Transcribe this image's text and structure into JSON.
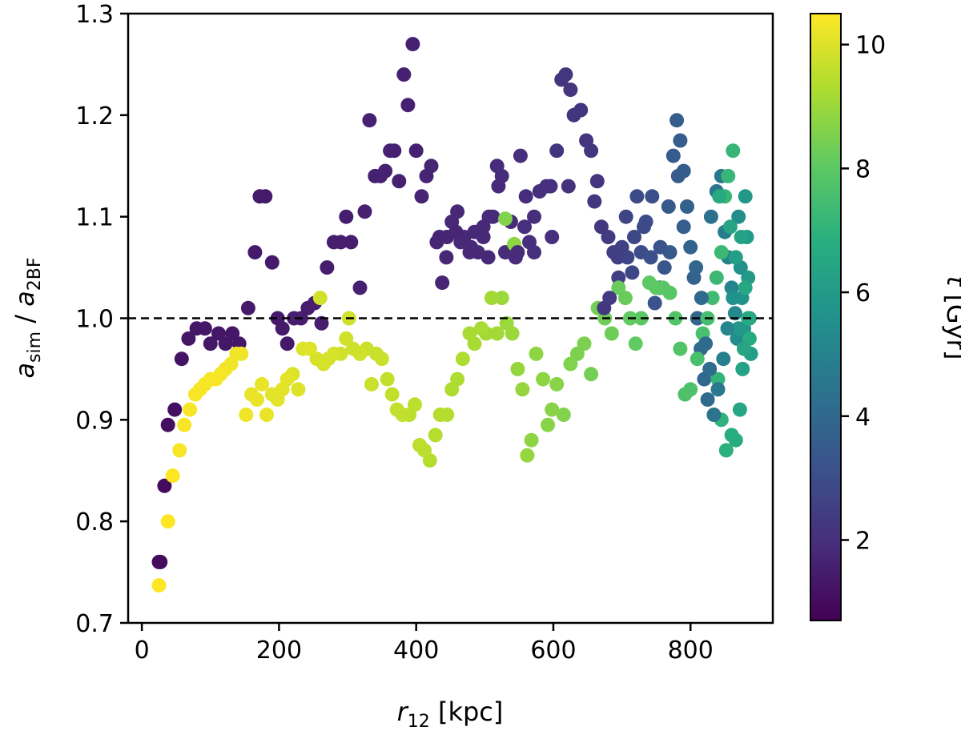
{
  "chart_data": {
    "type": "scatter",
    "title": "",
    "xlabel": {
      "main": "r",
      "sub": "12",
      "unit": "[kpc]"
    },
    "ylabel": {
      "num": "a",
      "num_sub": "sim",
      "sep": " / ",
      "den": "a",
      "den_sub": "2BF"
    },
    "colorbar_label": {
      "main": "t",
      "unit": "[Gyr]"
    },
    "xlim": [
      -20,
      920
    ],
    "ylim": [
      0.7,
      1.3
    ],
    "clim": [
      0.7,
      10.5
    ],
    "xticks": [
      "0",
      "200",
      "400",
      "600",
      "800"
    ],
    "yticks": [
      "0.7",
      "0.8",
      "0.9",
      "1.0",
      "1.1",
      "1.2",
      "1.3"
    ],
    "cticks": [
      "2",
      "4",
      "6",
      "8",
      "10"
    ],
    "colormap": "viridis",
    "reference_line": {
      "y": 1.0,
      "style": "dashed",
      "color": "#000000"
    },
    "points": [
      [
        25,
        0.76,
        1.0
      ],
      [
        27,
        0.76,
        1.0
      ],
      [
        33,
        0.835,
        1.0
      ],
      [
        38,
        0.895,
        1.1
      ],
      [
        48,
        0.91,
        1.1
      ],
      [
        58,
        0.96,
        1.2
      ],
      [
        68,
        0.98,
        1.3
      ],
      [
        80,
        0.99,
        1.3
      ],
      [
        92,
        0.99,
        1.3
      ],
      [
        100,
        0.975,
        1.3
      ],
      [
        112,
        0.985,
        1.3
      ],
      [
        122,
        0.975,
        1.3
      ],
      [
        132,
        0.985,
        1.3
      ],
      [
        142,
        0.975,
        1.3
      ],
      [
        155,
        1.01,
        1.4
      ],
      [
        165,
        1.065,
        1.4
      ],
      [
        172,
        1.12,
        1.4
      ],
      [
        180,
        1.12,
        1.4
      ],
      [
        190,
        1.055,
        1.4
      ],
      [
        198,
        1.0,
        1.4
      ],
      [
        205,
        0.99,
        1.4
      ],
      [
        212,
        0.975,
        1.4
      ],
      [
        222,
        1.0,
        1.5
      ],
      [
        232,
        1.0,
        1.5
      ],
      [
        242,
        1.01,
        1.5
      ],
      [
        252,
        1.015,
        1.5
      ],
      [
        262,
        0.995,
        1.5
      ],
      [
        270,
        1.05,
        1.5
      ],
      [
        280,
        1.075,
        1.5
      ],
      [
        290,
        1.075,
        1.5
      ],
      [
        298,
        1.1,
        1.5
      ],
      [
        305,
        1.075,
        1.5
      ],
      [
        318,
        1.03,
        1.6
      ],
      [
        325,
        1.105,
        1.6
      ],
      [
        332,
        1.195,
        1.6
      ],
      [
        340,
        1.14,
        1.6
      ],
      [
        348,
        1.14,
        1.6
      ],
      [
        355,
        1.145,
        1.6
      ],
      [
        362,
        1.165,
        1.6
      ],
      [
        368,
        1.165,
        1.6
      ],
      [
        375,
        1.135,
        1.6
      ],
      [
        382,
        1.24,
        1.6
      ],
      [
        388,
        1.21,
        1.6
      ],
      [
        395,
        1.27,
        1.6
      ],
      [
        400,
        1.165,
        1.6
      ],
      [
        408,
        1.12,
        1.7
      ],
      [
        415,
        1.14,
        1.7
      ],
      [
        422,
        1.15,
        1.7
      ],
      [
        430,
        1.075,
        1.7
      ],
      [
        438,
        1.035,
        1.7
      ],
      [
        445,
        1.08,
        1.7
      ],
      [
        452,
        1.095,
        1.8
      ],
      [
        460,
        1.105,
        1.8
      ],
      [
        465,
        1.075,
        1.8
      ],
      [
        470,
        1.08,
        1.8
      ],
      [
        478,
        1.065,
        1.8
      ],
      [
        485,
        1.085,
        1.8
      ],
      [
        490,
        1.065,
        1.8
      ],
      [
        498,
        1.08,
        1.8
      ],
      [
        505,
        1.06,
        1.8
      ],
      [
        512,
        1.1,
        1.9
      ],
      [
        518,
        1.15,
        1.9
      ],
      [
        525,
        1.14,
        1.9
      ],
      [
        530,
        1.065,
        1.9
      ],
      [
        538,
        1.095,
        1.9
      ],
      [
        545,
        1.06,
        1.9
      ],
      [
        552,
        1.16,
        2.0
      ],
      [
        558,
        1.09,
        2.0
      ],
      [
        565,
        1.075,
        2.0
      ],
      [
        572,
        1.065,
        2.0
      ],
      [
        580,
        1.125,
        2.0
      ],
      [
        590,
        1.13,
        2.0
      ],
      [
        598,
        1.08,
        2.0
      ],
      [
        605,
        1.165,
        2.2
      ],
      [
        612,
        1.235,
        2.2
      ],
      [
        618,
        1.24,
        2.2
      ],
      [
        625,
        1.225,
        2.2
      ],
      [
        630,
        1.2,
        2.2
      ],
      [
        640,
        1.205,
        2.2
      ],
      [
        648,
        1.175,
        2.2
      ],
      [
        655,
        1.165,
        2.2
      ],
      [
        660,
        1.115,
        2.3
      ],
      [
        670,
        1.09,
        2.3
      ],
      [
        680,
        1.08,
        2.4
      ],
      [
        688,
        1.065,
        2.5
      ],
      [
        695,
        1.04,
        2.5
      ],
      [
        700,
        1.07,
        2.6
      ],
      [
        708,
        1.06,
        2.7
      ],
      [
        715,
        1.045,
        2.8
      ],
      [
        722,
        1.12,
        2.9
      ],
      [
        728,
        1.065,
        3.0
      ],
      [
        735,
        1.095,
        3.0
      ],
      [
        742,
        1.06,
        3.1
      ],
      [
        748,
        1.015,
        3.2
      ],
      [
        755,
        1.03,
        3.3
      ],
      [
        762,
        1.05,
        3.3
      ],
      [
        770,
        1.065,
        3.4
      ],
      [
        775,
        1.16,
        3.5
      ],
      [
        780,
        1.195,
        3.6
      ],
      [
        785,
        1.175,
        3.6
      ],
      [
        790,
        1.145,
        3.6
      ],
      [
        795,
        1.11,
        3.7
      ],
      [
        800,
        1.07,
        3.8
      ],
      [
        805,
        1.04,
        3.8
      ],
      [
        810,
        1.0,
        3.9
      ],
      [
        815,
        0.97,
        4.0
      ],
      [
        820,
        0.94,
        4.0
      ],
      [
        825,
        0.92,
        4.1
      ],
      [
        830,
        1.1,
        4.3
      ],
      [
        838,
        1.125,
        4.5
      ],
      [
        845,
        1.14,
        4.6
      ],
      [
        850,
        1.085,
        4.8
      ],
      [
        855,
        1.06,
        5.0
      ],
      [
        860,
        1.03,
        5.1
      ],
      [
        865,
        1.005,
        5.3
      ],
      [
        868,
        0.98,
        5.4
      ],
      [
        870,
        1.1,
        5.5
      ],
      [
        873,
        1.05,
        5.6
      ],
      [
        875,
        1.02,
        5.7
      ],
      [
        878,
        0.99,
        5.8
      ],
      [
        880,
        1.12,
        5.9
      ],
      [
        882,
        1.08,
        6.0
      ],
      [
        884,
        1.04,
        6.0
      ],
      [
        886,
        1.0,
        6.1
      ],
      [
        888,
        0.965,
        6.2
      ],
      [
        876,
        0.95,
        6.3
      ],
      [
        872,
        0.91,
        6.5
      ],
      [
        866,
        0.88,
        6.7
      ],
      [
        860,
        0.885,
        6.8
      ],
      [
        852,
        0.87,
        6.9
      ],
      [
        845,
        0.9,
        7.0
      ],
      [
        840,
        0.94,
        7.1
      ],
      [
        862,
        1.165,
        7.2
      ],
      [
        855,
        1.14,
        7.2
      ],
      [
        850,
        1.12,
        7.2
      ],
      [
        845,
        1.065,
        7.3
      ],
      [
        838,
        1.04,
        7.3
      ],
      [
        832,
        1.02,
        7.4
      ],
      [
        825,
        1.0,
        7.5
      ],
      [
        818,
        0.985,
        7.6
      ],
      [
        810,
        0.96,
        7.6
      ],
      [
        800,
        0.93,
        7.7
      ],
      [
        792,
        0.925,
        7.7
      ],
      [
        785,
        0.97,
        7.8
      ],
      [
        778,
        1.0,
        7.8
      ],
      [
        770,
        1.025,
        7.9
      ],
      [
        760,
        1.03,
        7.9
      ],
      [
        750,
        1.03,
        8.0
      ],
      [
        740,
        1.035,
        8.0
      ],
      [
        728,
        1.0,
        8.0
      ],
      [
        720,
        0.975,
        8.1
      ],
      [
        712,
        1.0,
        8.1
      ],
      [
        705,
        1.02,
        8.2
      ],
      [
        695,
        1.03,
        8.2
      ],
      [
        685,
        0.985,
        8.3
      ],
      [
        675,
        1.0,
        8.3
      ],
      [
        665,
        1.01,
        8.4
      ],
      [
        655,
        0.945,
        8.4
      ],
      [
        645,
        0.975,
        8.5
      ],
      [
        635,
        0.965,
        8.5
      ],
      [
        625,
        0.955,
        8.6
      ],
      [
        615,
        0.905,
        8.6
      ],
      [
        605,
        0.935,
        8.7
      ],
      [
        598,
        0.91,
        8.7
      ],
      [
        592,
        0.895,
        8.7
      ],
      [
        585,
        0.94,
        8.8
      ],
      [
        575,
        0.965,
        8.8
      ],
      [
        568,
        0.88,
        8.8
      ],
      [
        562,
        0.865,
        8.9
      ],
      [
        555,
        0.93,
        8.9
      ],
      [
        548,
        0.95,
        8.9
      ],
      [
        540,
        0.985,
        9.0
      ],
      [
        532,
        0.995,
        9.0
      ],
      [
        525,
        1.02,
        9.0
      ],
      [
        518,
        0.985,
        9.1
      ],
      [
        510,
        1.02,
        9.1
      ],
      [
        502,
        0.985,
        9.1
      ],
      [
        495,
        0.99,
        9.2
      ],
      [
        485,
        0.975,
        9.2
      ],
      [
        478,
        0.985,
        9.2
      ],
      [
        468,
        0.96,
        9.3
      ],
      [
        460,
        0.94,
        9.3
      ],
      [
        452,
        0.93,
        9.3
      ],
      [
        445,
        0.905,
        9.4
      ],
      [
        435,
        0.905,
        9.4
      ],
      [
        428,
        0.885,
        9.4
      ],
      [
        420,
        0.86,
        9.4
      ],
      [
        412,
        0.87,
        9.5
      ],
      [
        405,
        0.875,
        9.5
      ],
      [
        398,
        0.915,
        9.5
      ],
      [
        390,
        0.905,
        9.5
      ],
      [
        380,
        0.905,
        9.6
      ],
      [
        372,
        0.91,
        9.6
      ],
      [
        365,
        0.925,
        9.6
      ],
      [
        358,
        0.94,
        9.6
      ],
      [
        350,
        0.96,
        9.7
      ],
      [
        342,
        0.965,
        9.7
      ],
      [
        335,
        0.935,
        9.7
      ],
      [
        328,
        0.97,
        9.7
      ],
      [
        318,
        0.965,
        9.8
      ],
      [
        308,
        0.97,
        9.8
      ],
      [
        298,
        0.98,
        9.8
      ],
      [
        290,
        0.965,
        9.8
      ],
      [
        280,
        0.965,
        9.9
      ],
      [
        272,
        0.96,
        9.9
      ],
      [
        265,
        0.955,
        9.9
      ],
      [
        255,
        0.96,
        9.9
      ],
      [
        245,
        0.97,
        10.0
      ],
      [
        235,
        0.97,
        10.0
      ],
      [
        228,
        0.93,
        10.0
      ],
      [
        220,
        0.945,
        10.0
      ],
      [
        212,
        0.94,
        10.1
      ],
      [
        205,
        0.93,
        10.1
      ],
      [
        198,
        0.92,
        10.1
      ],
      [
        190,
        0.925,
        10.1
      ],
      [
        182,
        0.905,
        10.2
      ],
      [
        175,
        0.935,
        10.2
      ],
      [
        168,
        0.92,
        10.2
      ],
      [
        160,
        0.925,
        10.2
      ],
      [
        152,
        0.905,
        10.3
      ],
      [
        145,
        0.965,
        10.3
      ],
      [
        138,
        0.965,
        10.3
      ],
      [
        130,
        0.955,
        10.3
      ],
      [
        122,
        0.95,
        10.3
      ],
      [
        115,
        0.945,
        10.4
      ],
      [
        108,
        0.94,
        10.4
      ],
      [
        100,
        0.94,
        10.4
      ],
      [
        92,
        0.935,
        10.4
      ],
      [
        85,
        0.93,
        10.4
      ],
      [
        78,
        0.925,
        10.4
      ],
      [
        70,
        0.91,
        10.4
      ],
      [
        62,
        0.895,
        10.4
      ],
      [
        55,
        0.87,
        10.4
      ],
      [
        45,
        0.845,
        10.5
      ],
      [
        38,
        0.8,
        10.5
      ],
      [
        25,
        0.737,
        10.5
      ],
      [
        530,
        1.098,
        8.6
      ],
      [
        543,
        1.073,
        8.8
      ],
      [
        260,
        1.02,
        9.8
      ],
      [
        302,
        1.0,
        9.8
      ],
      [
        842,
        1.12,
        6.6
      ],
      [
        858,
        1.09,
        6.4
      ],
      [
        866,
        1.06,
        6.2
      ],
      [
        874,
        1.08,
        6.3
      ],
      [
        880,
        1.03,
        6.5
      ],
      [
        884,
        1.0,
        6.6
      ],
      [
        886,
        0.98,
        6.7
      ],
      [
        878,
        0.97,
        6.4
      ],
      [
        870,
        0.99,
        5.9
      ],
      [
        862,
        1.02,
        5.6
      ],
      [
        854,
        0.99,
        5.2
      ],
      [
        848,
        0.96,
        4.9
      ],
      [
        840,
        0.93,
        4.6
      ],
      [
        834,
        0.905,
        4.4
      ],
      [
        828,
        0.95,
        4.2
      ],
      [
        822,
        0.975,
        4.1
      ],
      [
        816,
        1.02,
        4.0
      ],
      [
        808,
        1.05,
        3.9
      ],
      [
        790,
        1.09,
        3.6
      ],
      [
        782,
        1.14,
        3.5
      ],
      [
        768,
        1.11,
        3.4
      ],
      [
        756,
        1.07,
        3.2
      ],
      [
        744,
        1.12,
        3.1
      ],
      [
        732,
        1.09,
        2.9
      ],
      [
        718,
        1.08,
        2.8
      ],
      [
        706,
        1.1,
        2.7
      ],
      [
        694,
        1.06,
        2.5
      ],
      [
        682,
        1.02,
        2.4
      ],
      [
        674,
        1.01,
        2.3
      ],
      [
        664,
        1.135,
        2.2
      ],
      [
        622,
        1.13,
        2.1
      ],
      [
        596,
        1.13,
        2.0
      ],
      [
        572,
        1.1,
        1.95
      ],
      [
        560,
        1.12,
        1.95
      ],
      [
        548,
        1.065,
        1.9
      ],
      [
        520,
        1.13,
        1.85
      ],
      [
        506,
        1.1,
        1.85
      ],
      [
        498,
        1.09,
        1.8
      ],
      [
        480,
        1.07,
        1.8
      ],
      [
        458,
        1.085,
        1.75
      ],
      [
        444,
        1.06,
        1.75
      ],
      [
        434,
        1.08,
        1.7
      ]
    ]
  }
}
